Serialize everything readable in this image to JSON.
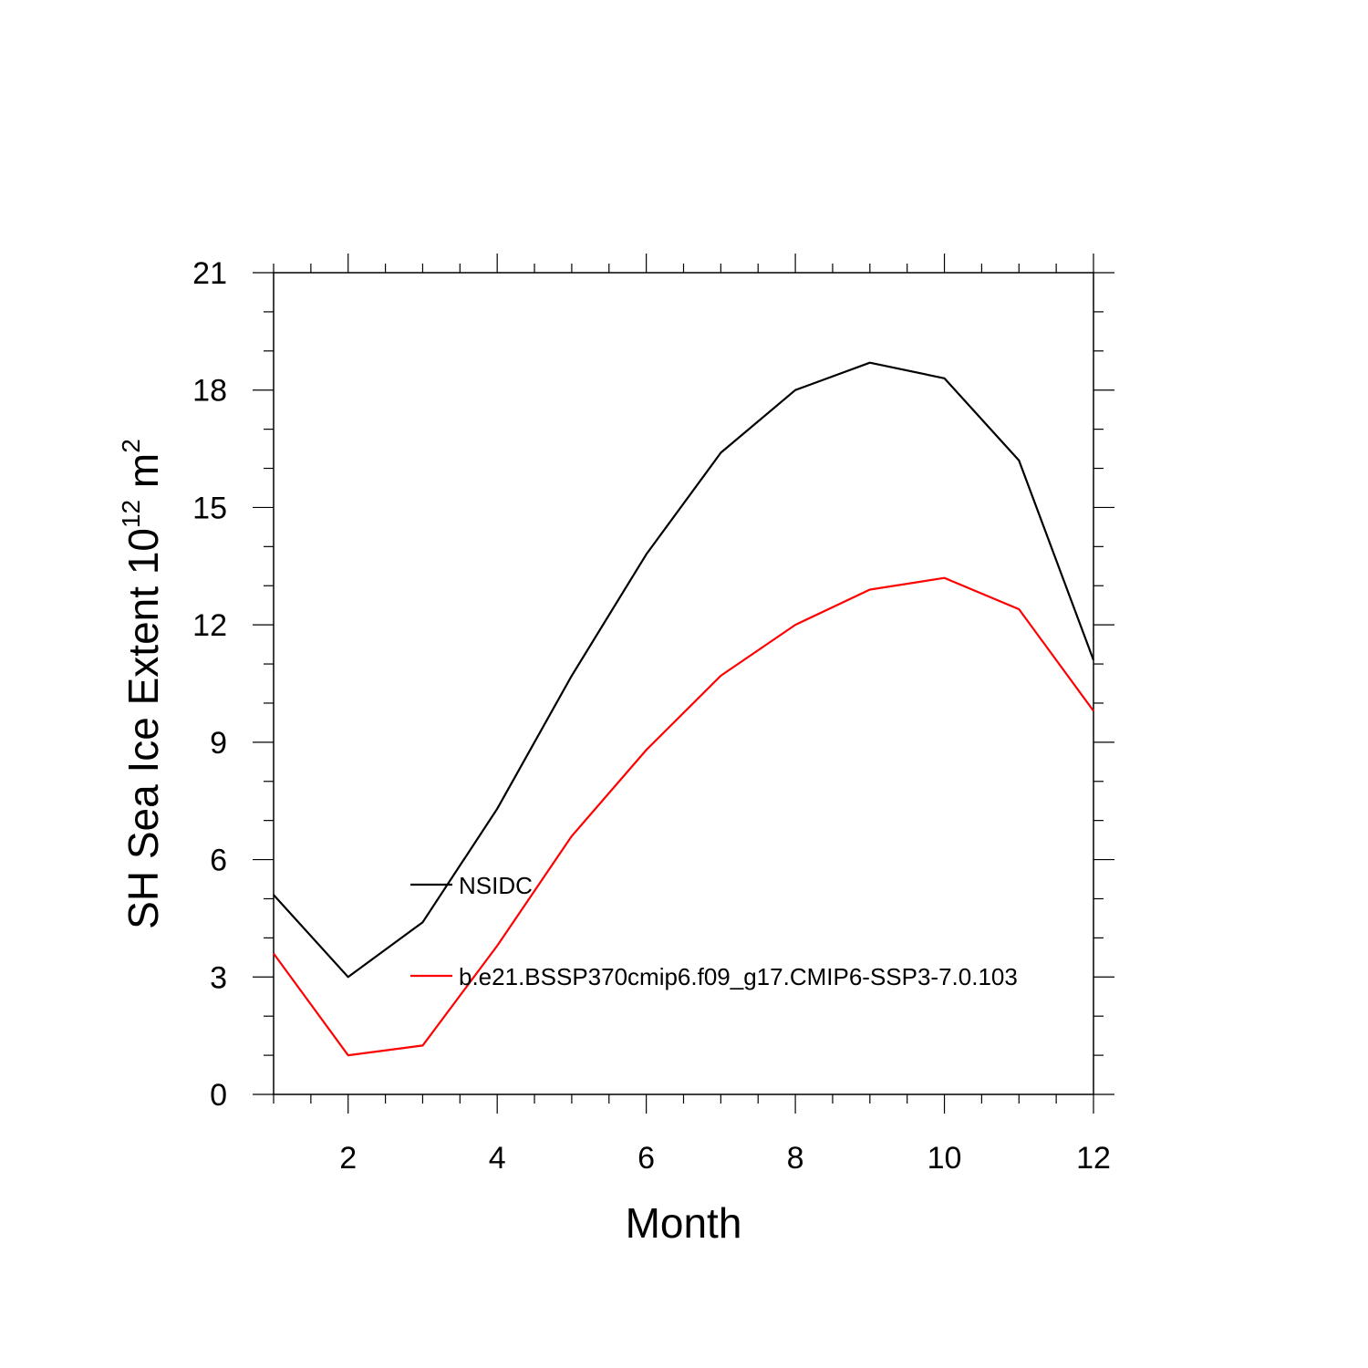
{
  "chart_data": {
    "type": "line",
    "xlabel": "Month",
    "ylabel_parts": [
      "SH Sea Ice Extent 10",
      "12",
      " m",
      "2"
    ],
    "xlim": [
      1,
      12
    ],
    "ylim": [
      0,
      21
    ],
    "x_ticks": [
      2,
      4,
      6,
      8,
      10,
      12
    ],
    "x_tick_labels": [
      "2",
      "4",
      "6",
      "8",
      "10",
      "12"
    ],
    "y_ticks": [
      0,
      3,
      6,
      9,
      12,
      15,
      18,
      21
    ],
    "y_tick_labels": [
      "0",
      "3",
      "6",
      "9",
      "12",
      "15",
      "18",
      "21"
    ],
    "x": [
      1,
      2,
      3,
      4,
      5,
      6,
      7,
      8,
      9,
      10,
      11,
      12
    ],
    "series": [
      {
        "name": "NSIDC",
        "color": "#000000",
        "values": [
          5.1,
          3.0,
          4.4,
          7.3,
          10.7,
          13.8,
          16.4,
          18.0,
          18.7,
          18.3,
          16.2,
          11.1
        ]
      },
      {
        "name": "b.e21.BSSP370cmip6.f09_g17.CMIP6-SSP3-7.0.103",
        "color": "#ff0000",
        "values": [
          3.6,
          1.0,
          1.25,
          3.8,
          6.6,
          8.8,
          10.7,
          12.0,
          12.9,
          13.2,
          12.4,
          9.8
        ]
      }
    ],
    "grid": false,
    "legend_position": "inside-lower-center"
  }
}
